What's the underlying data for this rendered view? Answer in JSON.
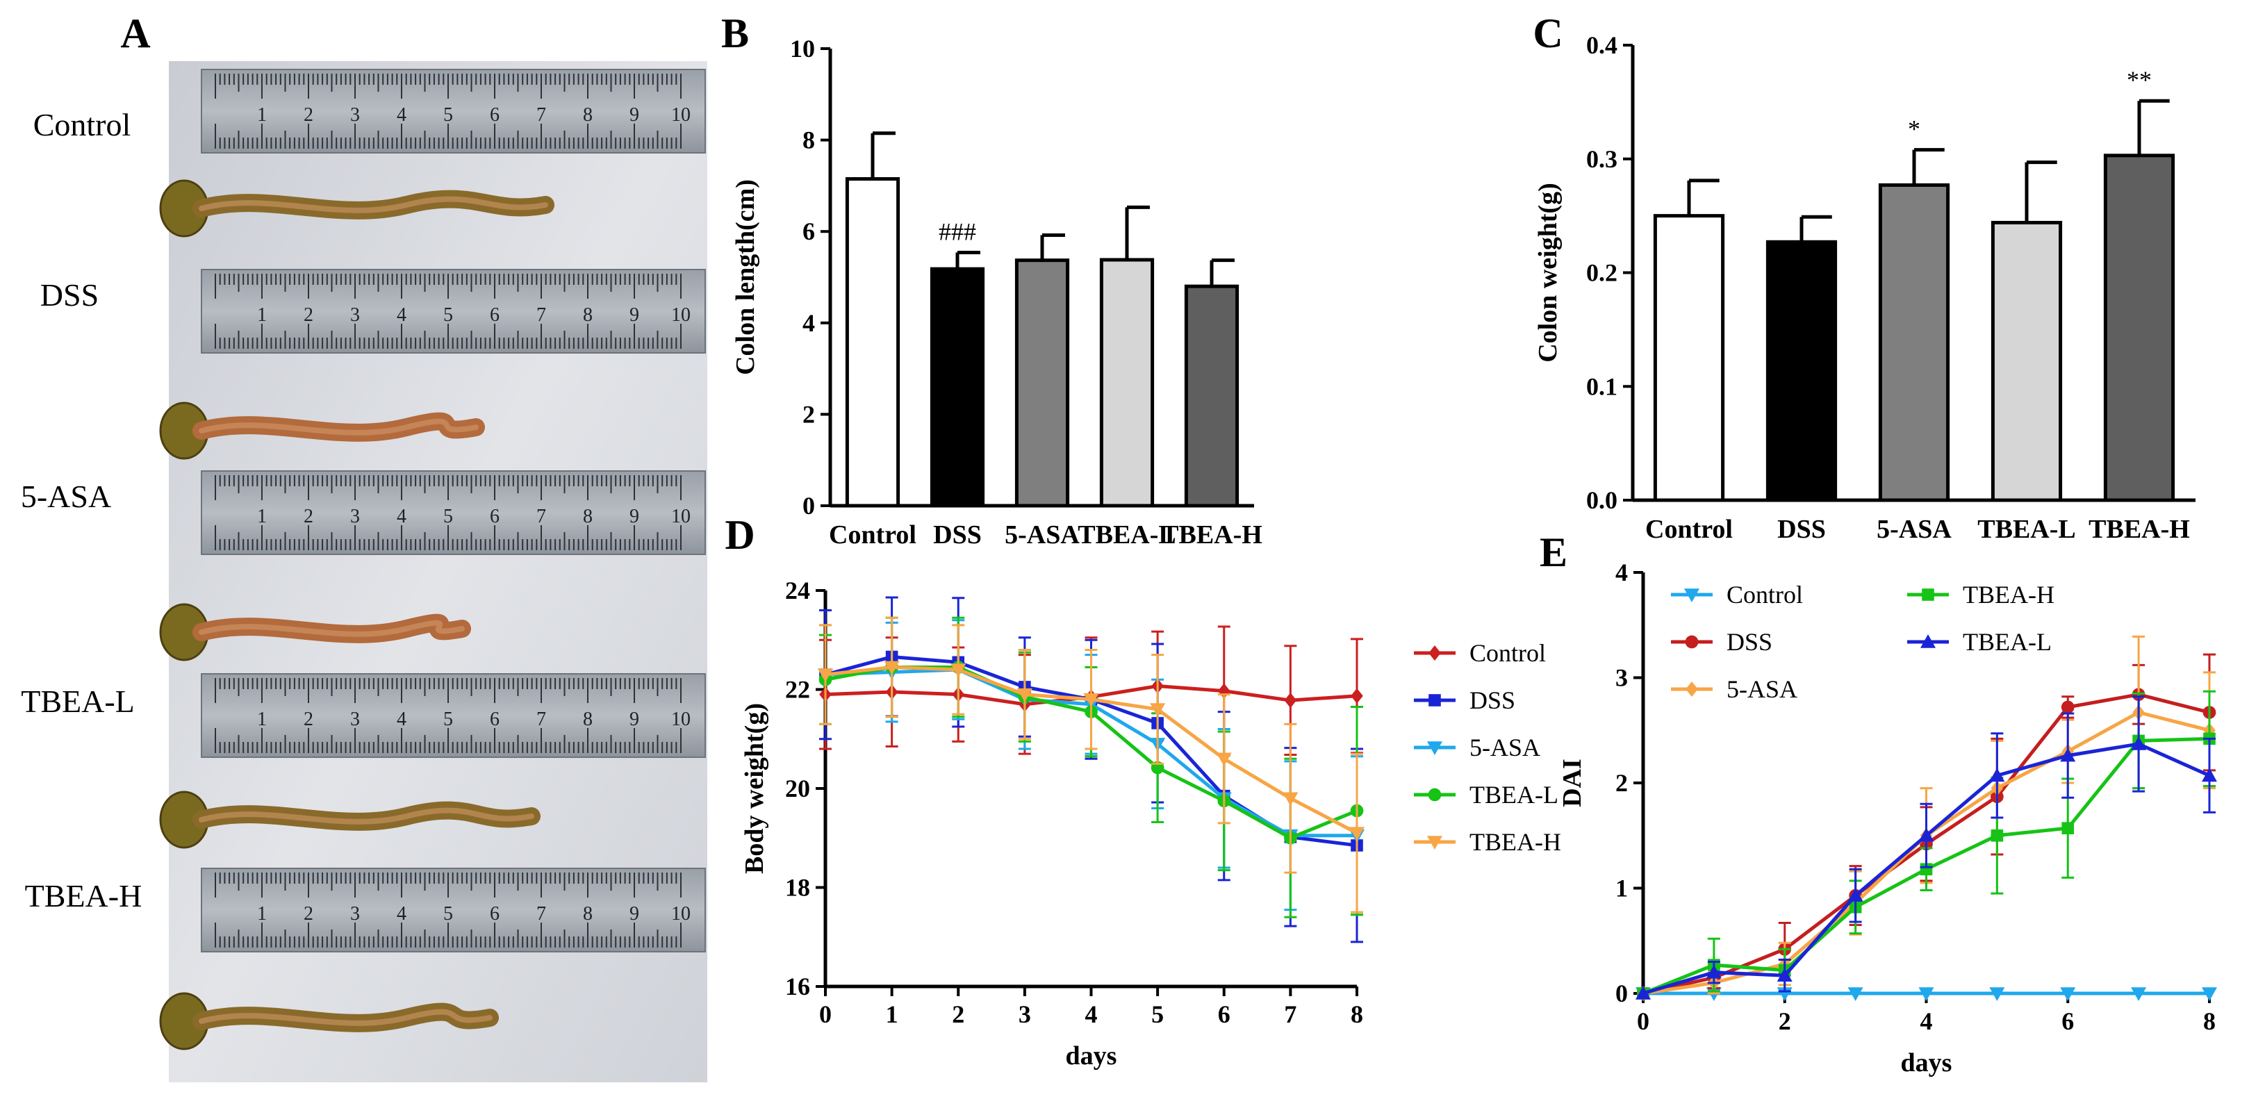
{
  "panels": {
    "A": {
      "label": "A",
      "rows": [
        {
          "group": "Control"
        },
        {
          "group": "DSS"
        },
        {
          "group": "5-ASA"
        },
        {
          "group": "TBEA-L"
        },
        {
          "group": "TBEA-H"
        }
      ],
      "ruler_ticks": [
        "1",
        "2",
        "3",
        "4",
        "5",
        "6",
        "7",
        "8",
        "9",
        "10"
      ]
    }
  },
  "colors": {
    "control": "#cc1f1f",
    "dss": "#1a24d6",
    "asa": "#1fa8ec",
    "tbea_l": "#16c316",
    "tbea_h": "#f7a545",
    "bar_control": "#ffffff",
    "bar_dss": "#000000",
    "bar_asa": "#7f7f7f",
    "bar_tbea_l": "#d6d6d6",
    "bar_tbea_h": "#5f5f5f"
  },
  "chart_data": [
    {
      "panel": "B",
      "type": "bar",
      "categories": [
        "Control",
        "DSS",
        "5-ASA",
        "TBEA-L",
        "TBEA-H"
      ],
      "values": [
        7.15,
        5.18,
        5.37,
        5.38,
        4.8
      ],
      "errors": [
        1.0,
        0.36,
        0.55,
        1.15,
        0.57
      ],
      "annotations": [
        "",
        "###",
        "",
        "",
        ""
      ],
      "fills": [
        "#ffffff",
        "#000000",
        "#7f7f7f",
        "#d6d6d6",
        "#5f5f5f"
      ],
      "ylabel": "Colon length(cm)",
      "ylim": [
        0,
        10
      ],
      "yticks": [
        "0",
        "2",
        "4",
        "6",
        "8",
        "10"
      ]
    },
    {
      "panel": "C",
      "type": "bar",
      "categories": [
        "Control",
        "DSS",
        "5-ASA",
        "TBEA-L",
        "TBEA-H"
      ],
      "values": [
        0.25,
        0.227,
        0.277,
        0.244,
        0.303
      ],
      "errors": [
        0.031,
        0.022,
        0.031,
        0.053,
        0.048
      ],
      "annotations": [
        "",
        "",
        "*",
        "",
        "**"
      ],
      "fills": [
        "#ffffff",
        "#000000",
        "#7f7f7f",
        "#d6d6d6",
        "#5f5f5f"
      ],
      "ylabel": "Colon weight(g)",
      "ylim": [
        0,
        0.4
      ],
      "yticks": [
        "0.0",
        "0.1",
        "0.2",
        "0.3",
        "0.4"
      ]
    },
    {
      "panel": "D",
      "type": "line",
      "xlabel": "days",
      "ylabel": "Body weight(g)",
      "xlim": [
        0,
        8
      ],
      "ylim": [
        16,
        24
      ],
      "xticks": [
        "0",
        "1",
        "2",
        "3",
        "4",
        "5",
        "6",
        "7",
        "8"
      ],
      "yticks": [
        "16",
        "18",
        "20",
        "22",
        "24"
      ],
      "legend_position": "right",
      "x": [
        0,
        1,
        2,
        3,
        4,
        5,
        6,
        7,
        8
      ],
      "series": [
        {
          "name": "Control",
          "marker": "diamond",
          "color": "#cc1f1f",
          "values": [
            21.9,
            21.95,
            21.9,
            21.7,
            21.85,
            22.07,
            21.97,
            21.78,
            21.87
          ],
          "errors": [
            1.1,
            1.1,
            0.95,
            1.0,
            1.2,
            1.1,
            1.3,
            1.1,
            1.15
          ]
        },
        {
          "name": "DSS",
          "marker": "square",
          "color": "#1a24d6",
          "values": [
            22.3,
            22.66,
            22.55,
            22.05,
            21.8,
            21.32,
            19.85,
            19.02,
            18.85
          ],
          "errors": [
            1.3,
            1.2,
            1.3,
            1.0,
            1.2,
            1.6,
            1.7,
            1.8,
            1.95
          ]
        },
        {
          "name": "5-ASA",
          "marker": "triangle-down",
          "color": "#1fa8ec",
          "values": [
            22.3,
            22.35,
            22.4,
            21.8,
            21.7,
            20.9,
            19.8,
            19.05,
            19.05
          ],
          "errors": [
            1.0,
            1.0,
            1.0,
            1.0,
            1.0,
            1.3,
            1.4,
            1.5,
            1.6
          ]
        },
        {
          "name": "TBEA-L",
          "marker": "circle",
          "color": "#16c316",
          "values": [
            22.2,
            22.45,
            22.45,
            21.85,
            21.55,
            20.42,
            19.75,
            19.0,
            19.55
          ],
          "errors": [
            0.9,
            1.0,
            1.0,
            0.9,
            0.9,
            1.1,
            1.4,
            1.6,
            2.1
          ]
        },
        {
          "name": "TBEA-H",
          "marker": "triangle-down",
          "color": "#f7a545",
          "values": [
            22.3,
            22.45,
            22.4,
            21.9,
            21.8,
            21.6,
            20.6,
            19.8,
            19.1
          ],
          "errors": [
            1.0,
            1.0,
            0.9,
            0.9,
            1.0,
            1.1,
            1.3,
            1.5,
            1.6
          ]
        }
      ]
    },
    {
      "panel": "E",
      "type": "line",
      "xlabel": "days",
      "ylabel": "DAI",
      "xlim": [
        0,
        8
      ],
      "ylim": [
        0,
        4
      ],
      "xticks": [
        "0",
        "2",
        "4",
        "6",
        "8"
      ],
      "yticks": [
        "0",
        "1",
        "2",
        "3",
        "4"
      ],
      "legend_position": "top-left",
      "x": [
        0,
        1,
        2,
        3,
        4,
        5,
        6,
        7,
        8
      ],
      "series": [
        {
          "name": "Control",
          "marker": "triangle-down",
          "color": "#1fa8ec",
          "values": [
            0,
            0,
            0,
            0,
            0,
            0,
            0,
            0,
            0
          ],
          "errors": [
            0,
            0,
            0,
            0,
            0,
            0,
            0,
            0,
            0
          ]
        },
        {
          "name": "DSS",
          "marker": "circle",
          "color": "#c41e1e",
          "values": [
            0,
            0.15,
            0.42,
            0.93,
            1.42,
            1.87,
            2.72,
            2.84,
            2.67
          ],
          "errors": [
            0,
            0.1,
            0.25,
            0.28,
            0.35,
            0.55,
            0.1,
            0.28,
            0.55
          ]
        },
        {
          "name": "5-ASA",
          "marker": "diamond",
          "color": "#f7a545",
          "values": [
            0,
            0.1,
            0.28,
            0.86,
            1.5,
            1.95,
            2.3,
            2.67,
            2.5
          ],
          "errors": [
            0,
            0.1,
            0.2,
            0.3,
            0.45,
            0.45,
            0.3,
            0.72,
            0.55
          ]
        },
        {
          "name": "TBEA-H",
          "marker": "square",
          "color": "#16c316",
          "values": [
            0,
            0.27,
            0.22,
            0.82,
            1.18,
            1.5,
            1.57,
            2.4,
            2.42
          ],
          "errors": [
            0,
            0.25,
            0.2,
            0.25,
            0.2,
            0.55,
            0.47,
            0.45,
            0.45
          ]
        },
        {
          "name": "TBEA-L",
          "marker": "triangle-up",
          "color": "#1a24d6",
          "values": [
            0,
            0.2,
            0.17,
            0.93,
            1.5,
            2.07,
            2.26,
            2.37,
            2.07
          ],
          "errors": [
            0,
            0.1,
            0.15,
            0.25,
            0.3,
            0.4,
            0.4,
            0.45,
            0.35
          ]
        }
      ]
    }
  ]
}
